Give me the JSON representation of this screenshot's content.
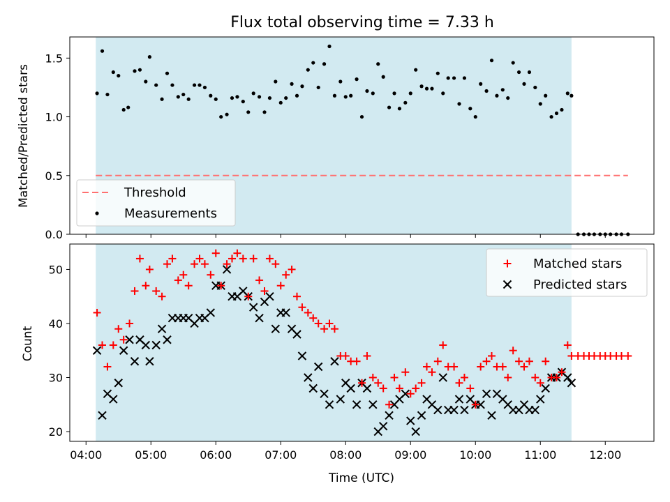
{
  "chart_data": {
    "title": "Flux total observing time = 7.33 h",
    "xlabel": "Time (UTC)",
    "x_ticks": [
      "04:00",
      "05:00",
      "06:00",
      "07:00",
      "08:00",
      "09:00",
      "10:00",
      "11:00",
      "12:00"
    ],
    "x_range_hours": [
      3.75,
      12.75
    ],
    "observing_window_hours": [
      4.15,
      11.48
    ],
    "observing_window_color": "#add8e6",
    "top": {
      "type": "scatter",
      "ylabel": "Matched/Predicted stars",
      "ylim": [
        0,
        1.68
      ],
      "y_ticks": [
        "0.0",
        "0.5",
        "1.0",
        "1.5"
      ],
      "threshold": {
        "name": "Threshold",
        "value": 0.5,
        "x_range_hours": [
          4.15,
          12.35
        ],
        "color": "#ff7070"
      },
      "measurements_name": "Measurements",
      "measurement_color": "#000000",
      "measurements": [
        [
          4.17,
          1.2
        ],
        [
          4.25,
          1.56
        ],
        [
          4.33,
          1.19
        ],
        [
          4.42,
          1.38
        ],
        [
          4.5,
          1.35
        ],
        [
          4.58,
          1.06
        ],
        [
          4.65,
          1.08
        ],
        [
          4.75,
          1.39
        ],
        [
          4.83,
          1.4
        ],
        [
          4.92,
          1.3
        ],
        [
          4.98,
          1.51
        ],
        [
          5.08,
          1.27
        ],
        [
          5.17,
          1.15
        ],
        [
          5.25,
          1.37
        ],
        [
          5.33,
          1.27
        ],
        [
          5.42,
          1.17
        ],
        [
          5.5,
          1.19
        ],
        [
          5.58,
          1.15
        ],
        [
          5.67,
          1.27
        ],
        [
          5.75,
          1.27
        ],
        [
          5.83,
          1.25
        ],
        [
          5.92,
          1.18
        ],
        [
          6.0,
          1.15
        ],
        [
          6.08,
          1.0
        ],
        [
          6.17,
          1.02
        ],
        [
          6.25,
          1.16
        ],
        [
          6.33,
          1.17
        ],
        [
          6.42,
          1.13
        ],
        [
          6.5,
          1.04
        ],
        [
          6.58,
          1.2
        ],
        [
          6.67,
          1.17
        ],
        [
          6.75,
          1.04
        ],
        [
          6.83,
          1.16
        ],
        [
          6.92,
          1.3
        ],
        [
          7.0,
          1.12
        ],
        [
          7.08,
          1.16
        ],
        [
          7.17,
          1.28
        ],
        [
          7.25,
          1.18
        ],
        [
          7.33,
          1.26
        ],
        [
          7.42,
          1.4
        ],
        [
          7.5,
          1.46
        ],
        [
          7.58,
          1.25
        ],
        [
          7.67,
          1.45
        ],
        [
          7.75,
          1.6
        ],
        [
          7.83,
          1.18
        ],
        [
          7.92,
          1.3
        ],
        [
          8.0,
          1.17
        ],
        [
          8.08,
          1.18
        ],
        [
          8.17,
          1.32
        ],
        [
          8.25,
          1.0
        ],
        [
          8.33,
          1.22
        ],
        [
          8.42,
          1.2
        ],
        [
          8.5,
          1.45
        ],
        [
          8.58,
          1.34
        ],
        [
          8.67,
          1.08
        ],
        [
          8.75,
          1.2
        ],
        [
          8.83,
          1.07
        ],
        [
          8.92,
          1.12
        ],
        [
          9.0,
          1.2
        ],
        [
          9.08,
          1.4
        ],
        [
          9.17,
          1.26
        ],
        [
          9.25,
          1.24
        ],
        [
          9.33,
          1.24
        ],
        [
          9.42,
          1.37
        ],
        [
          9.5,
          1.2
        ],
        [
          9.58,
          1.33
        ],
        [
          9.67,
          1.33
        ],
        [
          9.75,
          1.11
        ],
        [
          9.83,
          1.33
        ],
        [
          9.92,
          1.07
        ],
        [
          10.0,
          1.0
        ],
        [
          10.08,
          1.28
        ],
        [
          10.17,
          1.22
        ],
        [
          10.25,
          1.48
        ],
        [
          10.33,
          1.18
        ],
        [
          10.42,
          1.23
        ],
        [
          10.5,
          1.16
        ],
        [
          10.58,
          1.46
        ],
        [
          10.67,
          1.38
        ],
        [
          10.75,
          1.28
        ],
        [
          10.83,
          1.38
        ],
        [
          10.92,
          1.25
        ],
        [
          11.0,
          1.11
        ],
        [
          11.08,
          1.18
        ],
        [
          11.17,
          1.0
        ],
        [
          11.25,
          1.03
        ],
        [
          11.33,
          1.06
        ],
        [
          11.42,
          1.2
        ],
        [
          11.48,
          1.18
        ],
        [
          11.58,
          0
        ],
        [
          11.67,
          0
        ],
        [
          11.75,
          0
        ],
        [
          11.83,
          0
        ],
        [
          11.92,
          0
        ],
        [
          12.0,
          0
        ],
        [
          12.08,
          0
        ],
        [
          12.17,
          0
        ],
        [
          12.25,
          0
        ],
        [
          12.35,
          0
        ]
      ]
    },
    "bottom": {
      "type": "scatter",
      "ylabel": "Count",
      "ylim": [
        18.2,
        54.7
      ],
      "y_ticks": [
        "20",
        "30",
        "40",
        "50"
      ],
      "series": [
        {
          "name": "Matched stars",
          "marker": "plus",
          "color": "#ff0000",
          "points": [
            [
              4.17,
              42
            ],
            [
              4.25,
              36
            ],
            [
              4.33,
              32
            ],
            [
              4.42,
              36
            ],
            [
              4.5,
              39
            ],
            [
              4.58,
              37
            ],
            [
              4.67,
              40
            ],
            [
              4.75,
              46
            ],
            [
              4.83,
              52
            ],
            [
              4.92,
              47
            ],
            [
              4.98,
              50
            ],
            [
              5.08,
              46
            ],
            [
              5.17,
              45
            ],
            [
              5.25,
              51
            ],
            [
              5.33,
              52
            ],
            [
              5.42,
              48
            ],
            [
              5.5,
              49
            ],
            [
              5.58,
              47
            ],
            [
              5.67,
              51
            ],
            [
              5.75,
              52
            ],
            [
              5.83,
              51
            ],
            [
              5.92,
              49
            ],
            [
              6.0,
              53
            ],
            [
              6.08,
              47
            ],
            [
              6.17,
              51
            ],
            [
              6.25,
              52
            ],
            [
              6.33,
              53
            ],
            [
              6.42,
              52
            ],
            [
              6.5,
              45
            ],
            [
              6.58,
              52
            ],
            [
              6.67,
              48
            ],
            [
              6.75,
              46
            ],
            [
              6.83,
              52
            ],
            [
              6.92,
              51
            ],
            [
              7.0,
              47
            ],
            [
              7.08,
              49
            ],
            [
              7.17,
              50
            ],
            [
              7.25,
              45
            ],
            [
              7.33,
              43
            ],
            [
              7.42,
              42
            ],
            [
              7.5,
              41
            ],
            [
              7.58,
              40
            ],
            [
              7.67,
              39
            ],
            [
              7.75,
              40
            ],
            [
              7.83,
              39
            ],
            [
              7.92,
              34
            ],
            [
              8.0,
              34
            ],
            [
              8.08,
              33
            ],
            [
              8.17,
              33
            ],
            [
              8.25,
              29
            ],
            [
              8.33,
              34
            ],
            [
              8.42,
              30
            ],
            [
              8.5,
              29
            ],
            [
              8.58,
              28
            ],
            [
              8.67,
              25
            ],
            [
              8.75,
              30
            ],
            [
              8.83,
              28
            ],
            [
              8.92,
              31
            ],
            [
              9.0,
              27
            ],
            [
              9.08,
              28
            ],
            [
              9.17,
              29
            ],
            [
              9.25,
              32
            ],
            [
              9.33,
              31
            ],
            [
              9.42,
              33
            ],
            [
              9.5,
              36
            ],
            [
              9.58,
              32
            ],
            [
              9.67,
              32
            ],
            [
              9.75,
              29
            ],
            [
              9.83,
              30
            ],
            [
              9.92,
              28
            ],
            [
              10.0,
              25
            ],
            [
              10.08,
              32
            ],
            [
              10.17,
              33
            ],
            [
              10.25,
              34
            ],
            [
              10.33,
              32
            ],
            [
              10.42,
              32
            ],
            [
              10.5,
              30
            ],
            [
              10.58,
              35
            ],
            [
              10.67,
              33
            ],
            [
              10.75,
              32
            ],
            [
              10.83,
              33
            ],
            [
              10.92,
              30
            ],
            [
              11.0,
              29
            ],
            [
              11.08,
              33
            ],
            [
              11.17,
              30
            ],
            [
              11.25,
              30
            ],
            [
              11.33,
              31
            ],
            [
              11.42,
              36
            ],
            [
              11.48,
              34
            ],
            [
              11.58,
              34
            ],
            [
              11.67,
              34
            ],
            [
              11.75,
              34
            ],
            [
              11.83,
              34
            ],
            [
              11.92,
              34
            ],
            [
              12.0,
              34
            ],
            [
              12.08,
              34
            ],
            [
              12.17,
              34
            ],
            [
              12.25,
              34
            ],
            [
              12.35,
              34
            ]
          ]
        },
        {
          "name": "Predicted stars",
          "marker": "x",
          "color": "#000000",
          "points": [
            [
              4.17,
              35
            ],
            [
              4.25,
              23
            ],
            [
              4.33,
              27
            ],
            [
              4.42,
              26
            ],
            [
              4.5,
              29
            ],
            [
              4.58,
              35
            ],
            [
              4.67,
              37
            ],
            [
              4.75,
              33
            ],
            [
              4.83,
              37
            ],
            [
              4.92,
              36
            ],
            [
              4.98,
              33
            ],
            [
              5.08,
              36
            ],
            [
              5.17,
              39
            ],
            [
              5.25,
              37
            ],
            [
              5.33,
              41
            ],
            [
              5.42,
              41
            ],
            [
              5.5,
              41
            ],
            [
              5.58,
              41
            ],
            [
              5.67,
              40
            ],
            [
              5.75,
              41
            ],
            [
              5.83,
              41
            ],
            [
              5.92,
              42
            ],
            [
              6.0,
              47
            ],
            [
              6.08,
              47
            ],
            [
              6.17,
              50
            ],
            [
              6.25,
              45
            ],
            [
              6.33,
              45
            ],
            [
              6.42,
              46
            ],
            [
              6.5,
              45
            ],
            [
              6.58,
              43
            ],
            [
              6.67,
              41
            ],
            [
              6.75,
              44
            ],
            [
              6.83,
              45
            ],
            [
              6.92,
              39
            ],
            [
              7.0,
              42
            ],
            [
              7.08,
              42
            ],
            [
              7.17,
              39
            ],
            [
              7.25,
              38
            ],
            [
              7.33,
              34
            ],
            [
              7.42,
              30
            ],
            [
              7.5,
              28
            ],
            [
              7.58,
              32
            ],
            [
              7.67,
              27
            ],
            [
              7.75,
              25
            ],
            [
              7.83,
              33
            ],
            [
              7.92,
              26
            ],
            [
              8.0,
              29
            ],
            [
              8.08,
              28
            ],
            [
              8.17,
              25
            ],
            [
              8.25,
              29
            ],
            [
              8.33,
              28
            ],
            [
              8.42,
              25
            ],
            [
              8.5,
              20
            ],
            [
              8.58,
              21
            ],
            [
              8.67,
              23
            ],
            [
              8.75,
              25
            ],
            [
              8.83,
              26
            ],
            [
              8.92,
              27
            ],
            [
              9.0,
              22
            ],
            [
              9.08,
              20
            ],
            [
              9.17,
              23
            ],
            [
              9.25,
              26
            ],
            [
              9.33,
              25
            ],
            [
              9.42,
              24
            ],
            [
              9.5,
              30
            ],
            [
              9.58,
              24
            ],
            [
              9.67,
              24
            ],
            [
              9.75,
              26
            ],
            [
              9.83,
              24
            ],
            [
              9.92,
              26
            ],
            [
              10.0,
              25
            ],
            [
              10.08,
              25
            ],
            [
              10.17,
              27
            ],
            [
              10.25,
              23
            ],
            [
              10.33,
              27
            ],
            [
              10.42,
              26
            ],
            [
              10.5,
              25
            ],
            [
              10.58,
              24
            ],
            [
              10.67,
              24
            ],
            [
              10.75,
              25
            ],
            [
              10.83,
              24
            ],
            [
              10.92,
              24
            ],
            [
              11.0,
              26
            ],
            [
              11.08,
              28
            ],
            [
              11.17,
              30
            ],
            [
              11.25,
              30
            ],
            [
              11.33,
              31
            ],
            [
              11.42,
              30
            ],
            [
              11.48,
              29
            ]
          ]
        }
      ]
    }
  }
}
